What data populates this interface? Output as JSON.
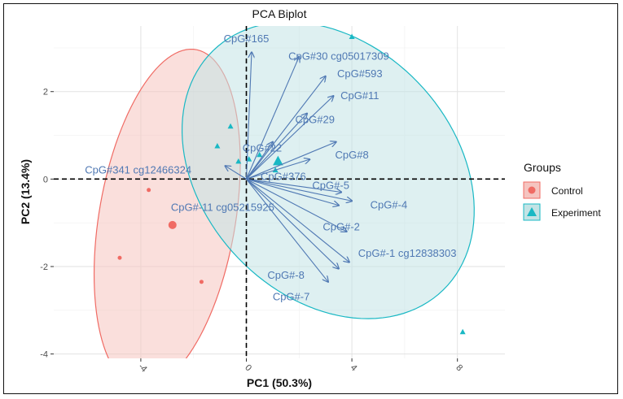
{
  "chart_data": {
    "type": "scatter",
    "title": "PCA Biplot",
    "xlabel": "PC1 (50.3%)",
    "ylabel": "PC2 (13.4%)",
    "xlim": [
      -7.3,
      9.8
    ],
    "ylim": [
      -4.1,
      3.5
    ],
    "x_ticks": [
      -4,
      0,
      4,
      8
    ],
    "x_tick_labels": [
      "-4",
      "0",
      "4",
      "8"
    ],
    "y_ticks": [
      -4,
      -2,
      0,
      2
    ],
    "y_tick_labels": [
      "-4",
      "-2",
      "0",
      "2"
    ],
    "grid": true,
    "reference_lines": {
      "x": 0,
      "y": 0
    },
    "legend": {
      "title": "Groups",
      "position": "right",
      "items": [
        {
          "label": "Control",
          "color": "#f06b64",
          "shape": "circle"
        },
        {
          "label": "Experiment",
          "color": "#19b8c4",
          "shape": "triangle"
        }
      ]
    },
    "ellipses": [
      {
        "group": "Control",
        "color": "#f06b64",
        "fill": "#f5c4c0",
        "cx": -3.0,
        "cy": -0.9,
        "rx": 4.05,
        "ry": 2.5,
        "angle_deg": 68
      },
      {
        "group": "Experiment",
        "color": "#19b8c4",
        "fill": "#c3e3e5",
        "cx": 3.1,
        "cy": 0.2,
        "rx": 5.65,
        "ry": 3.2,
        "angle_deg": -14
      }
    ],
    "series": [
      {
        "name": "Control",
        "marker": "circle",
        "color": "#f06b64",
        "points": [
          {
            "x": -3.7,
            "y": -0.25,
            "size": 4
          },
          {
            "x": -2.8,
            "y": -1.05,
            "size": 8
          },
          {
            "x": -4.8,
            "y": -1.8,
            "size": 4
          },
          {
            "x": -1.7,
            "y": -2.35,
            "size": 4
          }
        ]
      },
      {
        "name": "Experiment",
        "marker": "triangle",
        "color": "#19b8c4",
        "points": [
          {
            "x": 4.0,
            "y": 3.25,
            "size": 5
          },
          {
            "x": -0.6,
            "y": 1.2,
            "size": 5
          },
          {
            "x": -1.1,
            "y": 0.75,
            "size": 5
          },
          {
            "x": -0.3,
            "y": 0.4,
            "size": 5
          },
          {
            "x": 0.1,
            "y": 0.45,
            "size": 5
          },
          {
            "x": 0.5,
            "y": 0.55,
            "size": 5
          },
          {
            "x": 1.2,
            "y": 0.4,
            "size": 9
          },
          {
            "x": 1.1,
            "y": 0.2,
            "size": 5
          },
          {
            "x": 8.2,
            "y": -3.5,
            "size": 5
          }
        ]
      }
    ],
    "loadings": {
      "color": "#4f78b3",
      "vectors": [
        {
          "label": "CpG#165",
          "x": 0.2,
          "y": 2.9,
          "lx": 0.0,
          "ly": 3.2,
          "anchor": "middle"
        },
        {
          "label": "CpG#30 cg05017309",
          "x": 2.0,
          "y": 2.8,
          "lx": 3.5,
          "ly": 2.8,
          "anchor": "middle"
        },
        {
          "label": "CpG#593",
          "x": 3.0,
          "y": 2.35,
          "lx": 4.3,
          "ly": 2.4,
          "anchor": "middle"
        },
        {
          "label": "CpG#11",
          "x": 3.3,
          "y": 1.9,
          "lx": 4.3,
          "ly": 1.9,
          "anchor": "middle"
        },
        {
          "label": "CpG#29",
          "x": 2.3,
          "y": 1.5,
          "lx": 2.6,
          "ly": 1.35,
          "anchor": "middle"
        },
        {
          "label": "CpG#22",
          "x": 1.0,
          "y": 0.85,
          "lx": 0.6,
          "ly": 0.7,
          "anchor": "middle"
        },
        {
          "label": "CpG#8",
          "x": 3.4,
          "y": 0.85,
          "lx": 4.0,
          "ly": 0.55,
          "anchor": "middle"
        },
        {
          "label": "CpG#376",
          "x": 2.4,
          "y": 0.45,
          "lx": 1.4,
          "ly": 0.05,
          "anchor": "middle"
        },
        {
          "label": "CpG#341 cg12466324",
          "x": -0.8,
          "y": 0.3,
          "lx": -4.1,
          "ly": 0.2,
          "anchor": "middle"
        },
        {
          "label": "CpG#-5",
          "x": 3.6,
          "y": -0.3,
          "lx": 3.2,
          "ly": -0.15,
          "anchor": "middle"
        },
        {
          "label": "CpG#-4",
          "x": 4.0,
          "y": -0.5,
          "lx": 5.4,
          "ly": -0.6,
          "anchor": "middle"
        },
        {
          "label": "CpG#-11 cg05215925",
          "x": 3.5,
          "y": -0.6,
          "lx": -0.9,
          "ly": -0.65,
          "anchor": "middle"
        },
        {
          "label": "CpG#-2",
          "x": 3.8,
          "y": -1.2,
          "lx": 3.6,
          "ly": -1.1,
          "anchor": "middle"
        },
        {
          "label": "CpG#-1 cg12838303",
          "x": 3.9,
          "y": -1.9,
          "lx": 6.1,
          "ly": -1.7,
          "anchor": "middle"
        },
        {
          "label": "CpG#-8",
          "x": 3.5,
          "y": -2.05,
          "lx": 1.5,
          "ly": -2.2,
          "anchor": "middle"
        },
        {
          "label": "CpG#-7",
          "x": 3.1,
          "y": -2.35,
          "lx": 1.7,
          "ly": -2.7,
          "anchor": "middle"
        }
      ]
    }
  }
}
